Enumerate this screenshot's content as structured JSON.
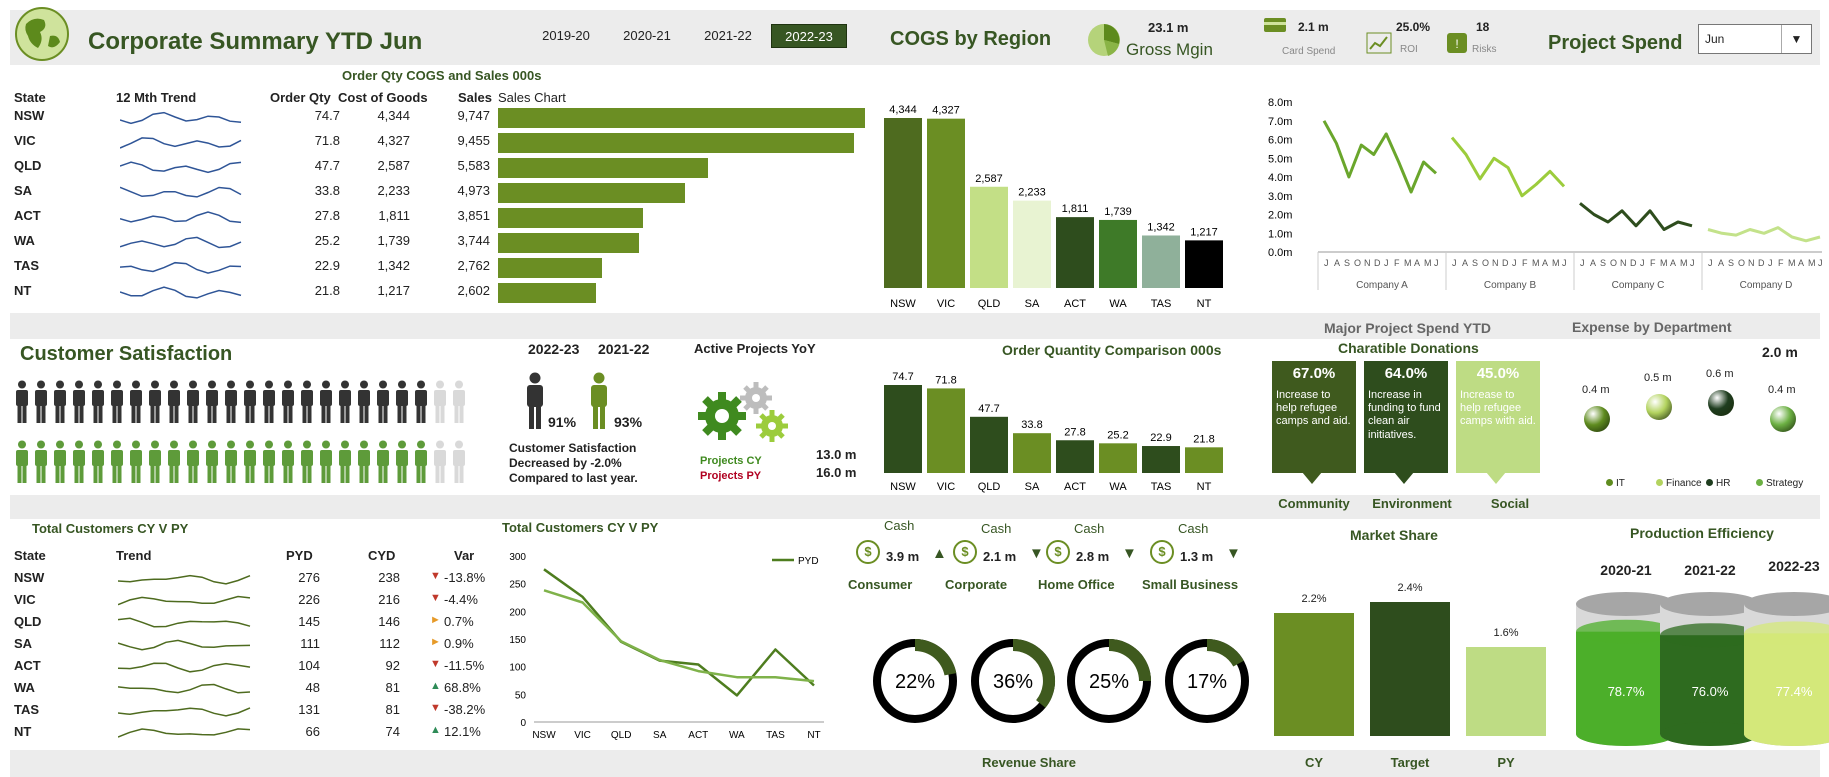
{
  "header": {
    "title": "Corporate Summary YTD Jun",
    "years": [
      "2019-20",
      "2020-21",
      "2021-22",
      "2022-23"
    ],
    "active_year": "2022-23",
    "cogs_title": "COGS by Region",
    "gross_margin_value": "23.1 m",
    "gross_margin_label": "Gross Mgin",
    "card_spend_value": "2.1 m",
    "card_spend_label": "Card Spend",
    "roi_value": "25.0%",
    "roi_label": "ROI",
    "risks_value": "18",
    "risks_label": "Risks",
    "project_spend_title": "Project Spend",
    "month_select": "Jun"
  },
  "state_table": {
    "subtitle": "Order Qty COGS and Sales 000s",
    "headers": {
      "state": "State",
      "trend": "12 Mth Trend",
      "qty": "Order Qty",
      "cogs": "Cost of Goods",
      "sales": "Sales",
      "chart": "Sales Chart"
    },
    "rows": [
      {
        "state": "NSW",
        "qty": "74.7",
        "cogs": "4,344",
        "sales": "9,747",
        "sales_num": 9747
      },
      {
        "state": "VIC",
        "qty": "71.8",
        "cogs": "4,327",
        "sales": "9,455",
        "sales_num": 9455
      },
      {
        "state": "QLD",
        "qty": "47.7",
        "cogs": "2,587",
        "sales": "5,583",
        "sales_num": 5583
      },
      {
        "state": "SA",
        "qty": "33.8",
        "cogs": "2,233",
        "sales": "4,973",
        "sales_num": 4973
      },
      {
        "state": "ACT",
        "qty": "27.8",
        "cogs": "1,811",
        "sales": "3,851",
        "sales_num": 3851
      },
      {
        "state": "WA",
        "qty": "25.2",
        "cogs": "1,739",
        "sales": "3,744",
        "sales_num": 3744
      },
      {
        "state": "TAS",
        "qty": "22.9",
        "cogs": "1,342",
        "sales": "2,762",
        "sales_num": 2762
      },
      {
        "state": "NT",
        "qty": "21.8",
        "cogs": "1,217",
        "sales": "2,602",
        "sales_num": 2602
      }
    ]
  },
  "cogs_chart": {
    "categories": [
      "NSW",
      "VIC",
      "QLD",
      "SA",
      "ACT",
      "WA",
      "TAS",
      "NT"
    ],
    "values": [
      4344,
      4327,
      2587,
      2233,
      1811,
      1739,
      1342,
      1217
    ],
    "labels": [
      "4,344",
      "4,327",
      "2,587",
      "2,233",
      "1,811",
      "1,739",
      "1,342",
      "1,217"
    ],
    "colors": [
      "#4e6b1f",
      "#6b8e23",
      "#c3df86",
      "#e8f3d2",
      "#2e4d1d",
      "#3e7a28",
      "#8fb09a",
      "#000000"
    ]
  },
  "project_spend_chart": {
    "yticks": [
      "8.0m",
      "7.0m",
      "6.0m",
      "5.0m",
      "4.0m",
      "3.0m",
      "2.0m",
      "1.0m",
      "0.0m"
    ],
    "months": [
      "J",
      "A",
      "S",
      "O",
      "N",
      "D",
      "J",
      "F",
      "M",
      "A",
      "M",
      "J"
    ],
    "companies": [
      {
        "name": "Company A",
        "color": "#6aa62c",
        "values": [
          7.0,
          5.8,
          4.0,
          5.7,
          5.2,
          6.3,
          4.8,
          3.2,
          4.8,
          4.2
        ]
      },
      {
        "name": "Company B",
        "color": "#9ccc3c",
        "values": [
          6.1,
          5.2,
          3.9,
          5.0,
          4.5,
          3.0,
          3.6,
          4.3,
          3.5
        ]
      },
      {
        "name": "Company C",
        "color": "#2e4d1d",
        "values": [
          2.6,
          2.0,
          1.6,
          2.2,
          1.4,
          2.2,
          1.2,
          1.6,
          1.4
        ]
      },
      {
        "name": "Company D",
        "color": "#c3e28a",
        "values": [
          1.2,
          1.0,
          0.9,
          1.2,
          1.0,
          1.3,
          0.8,
          0.6,
          0.8
        ]
      }
    ]
  },
  "customer_satisfaction": {
    "title": "Customer Satisfaction",
    "cy_label": "2022-23",
    "py_label": "2021-22",
    "cy_pct": "91%",
    "py_pct": "93%",
    "cy_filled": 22,
    "py_filled": 22,
    "total_icons": 24,
    "note1": "Customer Satisfaction",
    "note2": "Decreased by -2.0%",
    "note3": "Compared to last year."
  },
  "active_projects": {
    "title": "Active Projects YoY",
    "cy_label": "Projects CY",
    "py_label": "Projects PY",
    "cy_value": "13.0 m",
    "py_value": "16.0 m"
  },
  "order_qty_chart": {
    "title": "Order Quantity Comparison 000s",
    "categories": [
      "NSW",
      "VIC",
      "QLD",
      "SA",
      "ACT",
      "WA",
      "TAS",
      "NT"
    ],
    "values": [
      74.7,
      71.8,
      47.7,
      33.8,
      27.8,
      25.2,
      22.9,
      21.8
    ],
    "labels": [
      "74.7",
      "71.8",
      "47.7",
      "33.8",
      "27.8",
      "25.2",
      "22.9",
      "21.8"
    ],
    "colors": [
      "#2e4d1d",
      "#6b8e23",
      "#2e4d1d",
      "#6b8e23",
      "#2e4d1d",
      "#6b8e23",
      "#2e4d1d",
      "#6b8e23"
    ]
  },
  "donations": {
    "header": "Major Project Spend YTD",
    "title": "Charatible Donations",
    "cards": [
      {
        "pct": "67.0%",
        "text": "Increase to help refugee camps and aid.",
        "label": "Community",
        "color": "#3f5a1e"
      },
      {
        "pct": "64.0%",
        "text": "Increase in funding to fund clean air initiatives.",
        "label": "Environment",
        "color": "#2e4d1d"
      },
      {
        "pct": "45.0%",
        "text": "Increase to help refugee camps with aid.",
        "label": "Social",
        "color": "#bedc84"
      }
    ]
  },
  "expense": {
    "title": "Expense by Department",
    "total": "2.0 m",
    "items": [
      {
        "name": "IT",
        "value": "0.4 m",
        "color": "#5f8c1f"
      },
      {
        "name": "Finance",
        "value": "0.5 m",
        "color": "#b3d35f"
      },
      {
        "name": "HR",
        "value": "0.6 m",
        "color": "#1f3d1f"
      },
      {
        "name": "Strategy",
        "value": "0.4 m",
        "color": "#6cb043"
      }
    ]
  },
  "customers_table": {
    "title": "Total Customers CY V PY",
    "headers": {
      "state": "State",
      "trend": "Trend",
      "pyd": "PYD",
      "cyd": "CYD",
      "var": "Var"
    },
    "rows": [
      {
        "state": "NSW",
        "pyd": "276",
        "cyd": "238",
        "var": "-13.8%",
        "dir": "down"
      },
      {
        "state": "VIC",
        "pyd": "226",
        "cyd": "216",
        "var": "-4.4%",
        "dir": "down"
      },
      {
        "state": "QLD",
        "pyd": "145",
        "cyd": "146",
        "var": "0.7%",
        "dir": "flat"
      },
      {
        "state": "SA",
        "pyd": "111",
        "cyd": "112",
        "var": "0.9%",
        "dir": "flat"
      },
      {
        "state": "ACT",
        "pyd": "104",
        "cyd": "92",
        "var": "-11.5%",
        "dir": "down"
      },
      {
        "state": "WA",
        "pyd": "48",
        "cyd": "81",
        "var": "68.8%",
        "dir": "up"
      },
      {
        "state": "TAS",
        "pyd": "131",
        "cyd": "81",
        "var": "-38.2%",
        "dir": "down"
      },
      {
        "state": "NT",
        "pyd": "66",
        "cyd": "74",
        "var": "12.1%",
        "dir": "up"
      }
    ]
  },
  "customers_chart": {
    "title": "Total Customers CY V PY",
    "legend": "PYD",
    "yticks": [
      "300",
      "250",
      "200",
      "150",
      "100",
      "50",
      "0"
    ],
    "categories": [
      "NSW",
      "VIC",
      "QLD",
      "SA",
      "ACT",
      "WA",
      "TAS",
      "NT"
    ],
    "pyd": [
      276,
      226,
      145,
      111,
      104,
      48,
      131,
      66
    ],
    "cyd": [
      238,
      216,
      146,
      112,
      92,
      81,
      81,
      74
    ]
  },
  "cash": {
    "items": [
      {
        "title": "Cash",
        "value": "3.9 m",
        "dir": "up",
        "label": "Consumer",
        "pct": "22%",
        "frac": 0.22
      },
      {
        "title": "Cash",
        "value": "2.1 m",
        "dir": "down",
        "label": "Corporate",
        "pct": "36%",
        "frac": 0.36
      },
      {
        "title": "Cash",
        "value": "2.8 m",
        "dir": "down",
        "label": "Home Office",
        "pct": "25%",
        "frac": 0.25
      },
      {
        "title": "Cash",
        "value": "1.3 m",
        "dir": "down",
        "label": "Small Business",
        "pct": "17%",
        "frac": 0.17
      }
    ],
    "footer": "Revenue Share"
  },
  "market_share": {
    "title": "Market Share",
    "bars": [
      {
        "label": "CY",
        "value": "2.2%",
        "num": 2.2,
        "color": "#6b8e23"
      },
      {
        "label": "Target",
        "value": "2.4%",
        "num": 2.4,
        "color": "#2e4d1d"
      },
      {
        "label": "PY",
        "value": "1.6%",
        "num": 1.6,
        "color": "#bedc84"
      }
    ]
  },
  "production": {
    "title": "Production Efficiency",
    "items": [
      {
        "year": "2020-21",
        "pct": "78.7%",
        "frac": 0.787,
        "color": "#4caf2a"
      },
      {
        "year": "2021-22",
        "pct": "76.0%",
        "frac": 0.76,
        "color": "#2e6b1f"
      },
      {
        "year": "2022-23",
        "pct": "77.4%",
        "frac": 0.774,
        "color": "#d4e87a"
      }
    ]
  }
}
